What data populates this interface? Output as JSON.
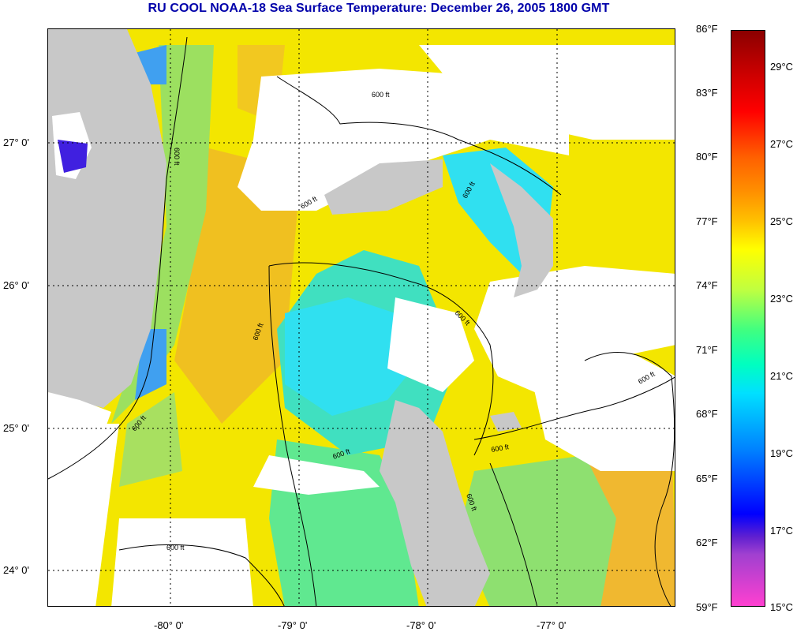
{
  "title": "RU COOL  NOAA-18  Sea Surface Temperature:  December 26, 2005 1800 GMT",
  "map": {
    "latitude_labels": [
      "27° 0'",
      "26° 0'",
      "25° 0'",
      "24° 0'"
    ],
    "longitude_labels": [
      "-80° 0'",
      "-79° 0'",
      "-78° 0'",
      "-77° 0'"
    ],
    "contour_labels": [
      "600 ft",
      "600 ft",
      "600 ft",
      "600 ft",
      "600 ft",
      "600 ft",
      "600 ft",
      "600 ft",
      "600 ft",
      "600 ft",
      "600 ft",
      "600 ft"
    ],
    "colors": {
      "land": "#c8c8c8",
      "cloud": "#ffffff",
      "contour": "#000000",
      "grid": "#000000"
    }
  },
  "colorbar": {
    "fahrenheit_labels": [
      "86°F",
      "83°F",
      "80°F",
      "77°F",
      "74°F",
      "71°F",
      "68°F",
      "65°F",
      "62°F",
      "59°F"
    ],
    "celsius_labels": [
      "29°C",
      "27°C",
      "25°C",
      "23°C",
      "21°C",
      "19°C",
      "17°C",
      "15°C"
    ],
    "gradient_colors": [
      "#8b0000",
      "#ff0000",
      "#ff8000",
      "#ffff00",
      "#00ff80",
      "#00ffff",
      "#0000ff",
      "#8040c0",
      "#ff40c0"
    ]
  }
}
